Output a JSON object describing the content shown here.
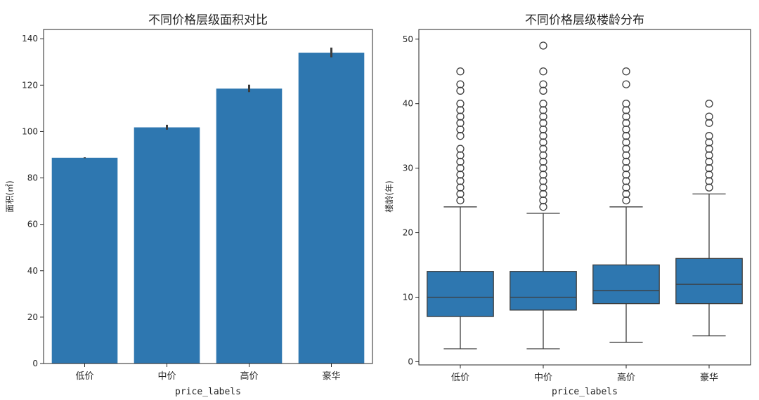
{
  "colors": {
    "bar": "#2e77b0",
    "box": "#2e77b0",
    "line": "#3d3d3d",
    "errorbar": "#3d3d3d",
    "axis": "#262626",
    "outlier_edge": "#3d3d3d"
  },
  "chart_data": [
    {
      "type": "bar",
      "title": "不同价格层级面积对比",
      "xlabel": "price_labels",
      "ylabel": "面积(㎡)",
      "categories": [
        "低价",
        "中价",
        "高价",
        "豪华"
      ],
      "values": [
        88.7,
        101.8,
        118.5,
        134.0
      ],
      "error_bars": [
        [
          88.5,
          88.9
        ],
        [
          100.8,
          102.9
        ],
        [
          117.0,
          120.2
        ],
        [
          132.0,
          136.2
        ]
      ],
      "ylim": [
        0,
        144
      ],
      "yticks": [
        0,
        20,
        40,
        60,
        80,
        100,
        120,
        140
      ],
      "grid": false
    },
    {
      "type": "box",
      "title": "不同价格层级楼龄分布",
      "xlabel": "price_labels",
      "ylabel": "楼龄(年)",
      "categories": [
        "低价",
        "中价",
        "高价",
        "豪华"
      ],
      "series": [
        {
          "q1": 7,
          "median": 10,
          "q3": 14,
          "whisker_low": 2,
          "whisker_high": 24,
          "outliers": [
            25,
            26,
            27,
            28,
            29,
            30,
            31,
            32,
            33,
            35,
            36,
            37,
            38,
            39,
            40,
            42,
            43,
            45
          ]
        },
        {
          "q1": 8,
          "median": 10,
          "q3": 14,
          "whisker_low": 2,
          "whisker_high": 23,
          "outliers": [
            24,
            25,
            26,
            27,
            28,
            29,
            30,
            31,
            32,
            33,
            34,
            35,
            36,
            37,
            38,
            39,
            40,
            42,
            43,
            45,
            49
          ]
        },
        {
          "q1": 9,
          "median": 11,
          "q3": 15,
          "whisker_low": 3,
          "whisker_high": 24,
          "outliers": [
            25,
            26,
            27,
            28,
            29,
            30,
            31,
            32,
            33,
            34,
            35,
            36,
            37,
            38,
            39,
            40,
            43,
            45
          ]
        },
        {
          "q1": 9,
          "median": 12,
          "q3": 16,
          "whisker_low": 4,
          "whisker_high": 26,
          "outliers": [
            27,
            28,
            29,
            30,
            31,
            32,
            33,
            34,
            35,
            37,
            38,
            40
          ]
        }
      ],
      "ylim": [
        -0.5,
        51.5
      ],
      "yticks": [
        0,
        10,
        20,
        30,
        40,
        50
      ],
      "grid": false
    }
  ]
}
